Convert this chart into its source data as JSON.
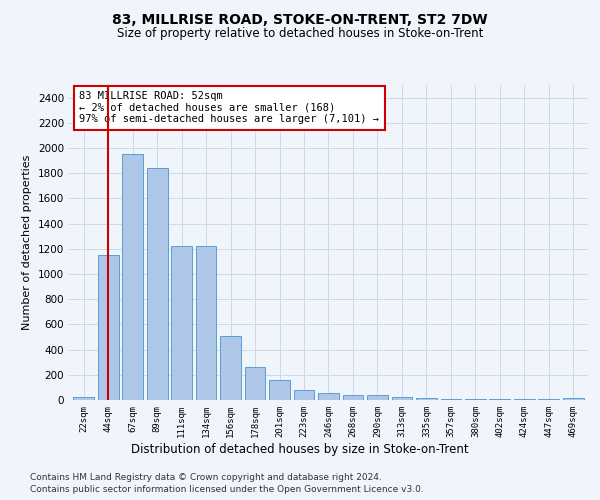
{
  "title": "83, MILLRISE ROAD, STOKE-ON-TRENT, ST2 7DW",
  "subtitle": "Size of property relative to detached houses in Stoke-on-Trent",
  "xlabel_bottom": "Distribution of detached houses by size in Stoke-on-Trent",
  "ylabel": "Number of detached properties",
  "categories": [
    "22sqm",
    "44sqm",
    "67sqm",
    "89sqm",
    "111sqm",
    "134sqm",
    "156sqm",
    "178sqm",
    "201sqm",
    "223sqm",
    "246sqm",
    "268sqm",
    "290sqm",
    "313sqm",
    "335sqm",
    "357sqm",
    "380sqm",
    "402sqm",
    "424sqm",
    "447sqm",
    "469sqm"
  ],
  "values": [
    25,
    1150,
    1950,
    1840,
    1220,
    1220,
    510,
    265,
    155,
    80,
    55,
    40,
    38,
    20,
    12,
    10,
    8,
    5,
    5,
    5,
    18
  ],
  "bar_color": "#aec6e8",
  "bar_edge_color": "#5a9fd4",
  "vline_x": 1,
  "vline_color": "#cc0000",
  "annotation_text": "83 MILLRISE ROAD: 52sqm\n← 2% of detached houses are smaller (168)\n97% of semi-detached houses are larger (7,101) →",
  "annotation_box_color": "#ffffff",
  "annotation_box_edge": "#cc0000",
  "ylim": [
    0,
    2500
  ],
  "yticks": [
    0,
    200,
    400,
    600,
    800,
    1000,
    1200,
    1400,
    1600,
    1800,
    2000,
    2200,
    2400
  ],
  "grid_color": "#d0d8e8",
  "background_color": "#f0f4fb",
  "footnote1": "Contains HM Land Registry data © Crown copyright and database right 2024.",
  "footnote2": "Contains public sector information licensed under the Open Government Licence v3.0."
}
